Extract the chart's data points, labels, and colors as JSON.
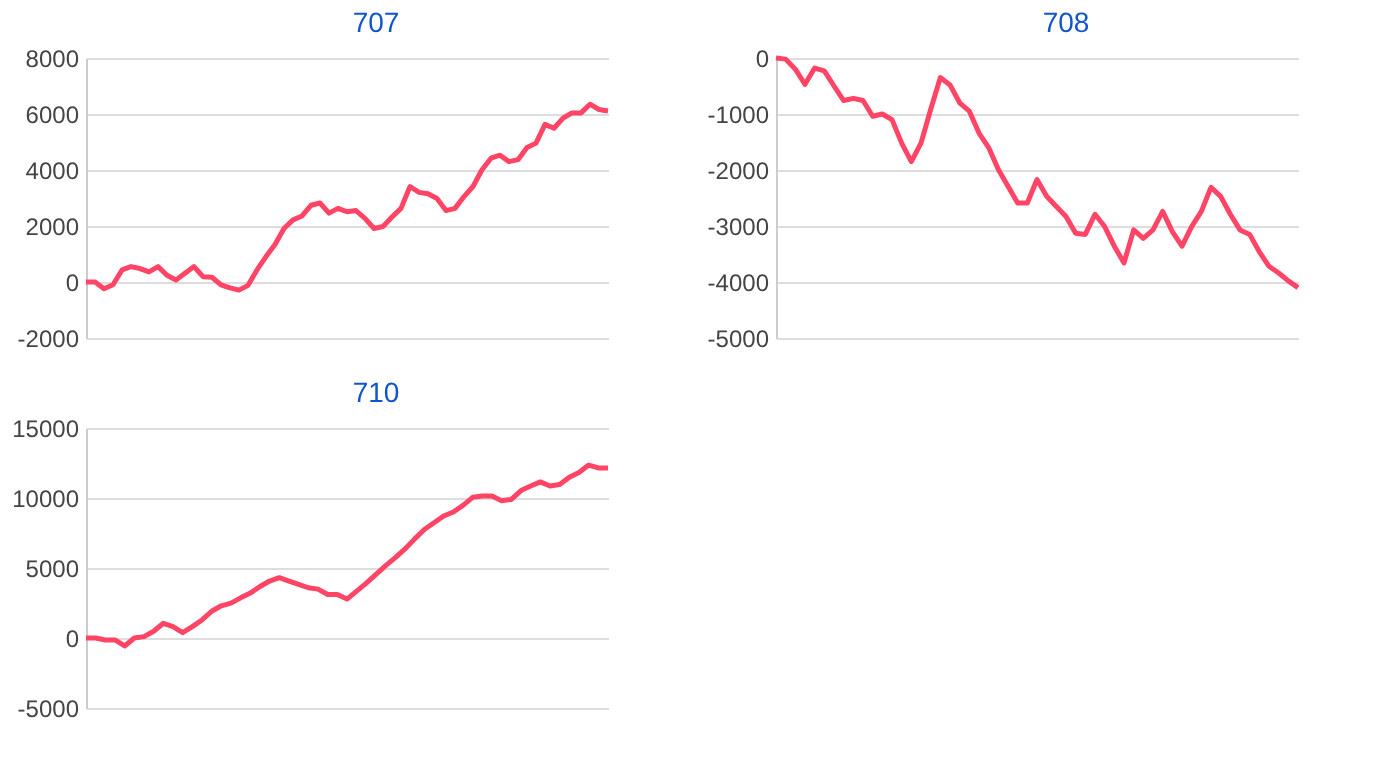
{
  "chart_data": [
    {
      "type": "line",
      "title": "707",
      "ylim": [
        -2000,
        8000
      ],
      "yticks": [
        -2000,
        0,
        2000,
        4000,
        6000,
        8000
      ],
      "grid": "y",
      "tick_labels": "y",
      "categories": [
        null,
        null,
        null,
        null,
        null,
        null,
        null,
        null,
        null,
        null,
        null,
        null,
        null,
        null,
        null,
        null,
        null,
        null,
        null,
        null,
        null,
        null,
        null,
        null,
        null,
        null,
        null,
        null,
        null,
        null,
        null,
        null,
        null,
        null,
        null,
        null,
        null,
        null,
        null,
        null,
        null,
        null,
        null,
        null,
        null,
        null,
        null,
        null,
        null,
        null,
        null,
        null,
        null,
        null,
        null,
        null,
        null,
        null,
        null
      ],
      "series": [
        {
          "color": "#ff4466",
          "values": [
            0,
            0,
            -240,
            -100,
            430,
            550,
            480,
            360,
            550,
            240,
            70,
            310,
            550,
            190,
            170,
            -100,
            -210,
            -290,
            -120,
            430,
            910,
            1340,
            1910,
            2220,
            2360,
            2740,
            2820,
            2460,
            2630,
            2510,
            2550,
            2270,
            1910,
            1980,
            2320,
            2630,
            3410,
            3200,
            3150,
            2980,
            2550,
            2630,
            3050,
            3410,
            4010,
            4420,
            4530,
            4300,
            4370,
            4800,
            4960,
            5630,
            5490,
            5850,
            6040,
            6040,
            6350,
            6160,
            6110
          ]
        }
      ]
    },
    {
      "type": "line",
      "title": "708",
      "ylim": [
        -5000,
        0
      ],
      "yticks": [
        -5000,
        -4000,
        -3000,
        -2000,
        -1000,
        0
      ],
      "grid": "y",
      "tick_labels": "y",
      "categories": [
        null,
        null,
        null,
        null,
        null,
        null,
        null,
        null,
        null,
        null,
        null,
        null,
        null,
        null,
        null,
        null,
        null,
        null,
        null,
        null,
        null,
        null,
        null,
        null,
        null,
        null,
        null,
        null,
        null,
        null,
        null,
        null,
        null,
        null,
        null,
        null,
        null,
        null,
        null,
        null,
        null,
        null,
        null,
        null,
        null,
        null,
        null,
        null,
        null,
        null,
        null,
        null,
        null,
        null,
        null
      ],
      "series": [
        {
          "color": "#ff4466",
          "values": [
            0,
            -20,
            -200,
            -470,
            -180,
            -230,
            -500,
            -760,
            -720,
            -760,
            -1040,
            -1000,
            -1100,
            -1520,
            -1850,
            -1520,
            -920,
            -350,
            -480,
            -800,
            -950,
            -1340,
            -1600,
            -1990,
            -2290,
            -2590,
            -2590,
            -2170,
            -2470,
            -2650,
            -2830,
            -3130,
            -3150,
            -2790,
            -3010,
            -3360,
            -3660,
            -3070,
            -3220,
            -3070,
            -2740,
            -3100,
            -3360,
            -3010,
            -2740,
            -2310,
            -2470,
            -2790,
            -3070,
            -3150,
            -3460,
            -3720,
            -3840,
            -3980,
            -4100
          ]
        }
      ]
    },
    {
      "type": "line",
      "title": "710",
      "ylim": [
        -5000,
        15000
      ],
      "yticks": [
        -5000,
        0,
        5000,
        10000,
        15000
      ],
      "grid": "y",
      "tick_labels": "y",
      "categories": [
        null,
        null,
        null,
        null,
        null,
        null,
        null,
        null,
        null,
        null,
        null,
        null,
        null,
        null,
        null,
        null,
        null,
        null,
        null,
        null,
        null,
        null,
        null,
        null,
        null,
        null,
        null,
        null,
        null,
        null,
        null,
        null,
        null,
        null,
        null,
        null,
        null,
        null,
        null,
        null,
        null,
        null,
        null,
        null,
        null,
        null,
        null,
        null,
        null,
        null,
        null,
        null,
        null,
        null,
        null
      ],
      "series": [
        {
          "color": "#ff4466",
          "values": [
            0,
            0,
            -140,
            -140,
            -570,
            0,
            100,
            480,
            1050,
            810,
            380,
            810,
            1290,
            1910,
            2300,
            2490,
            2870,
            3210,
            3680,
            4070,
            4310,
            4070,
            3830,
            3590,
            3490,
            3110,
            3110,
            2780,
            3350,
            3920,
            4550,
            5170,
            5740,
            6360,
            7080,
            7750,
            8230,
            8710,
            9000,
            9470,
            10050,
            10140,
            10140,
            9810,
            9900,
            10530,
            10860,
            11150,
            10860,
            10960,
            11480,
            11820,
            12350,
            12150,
            12150
          ]
        }
      ]
    }
  ]
}
